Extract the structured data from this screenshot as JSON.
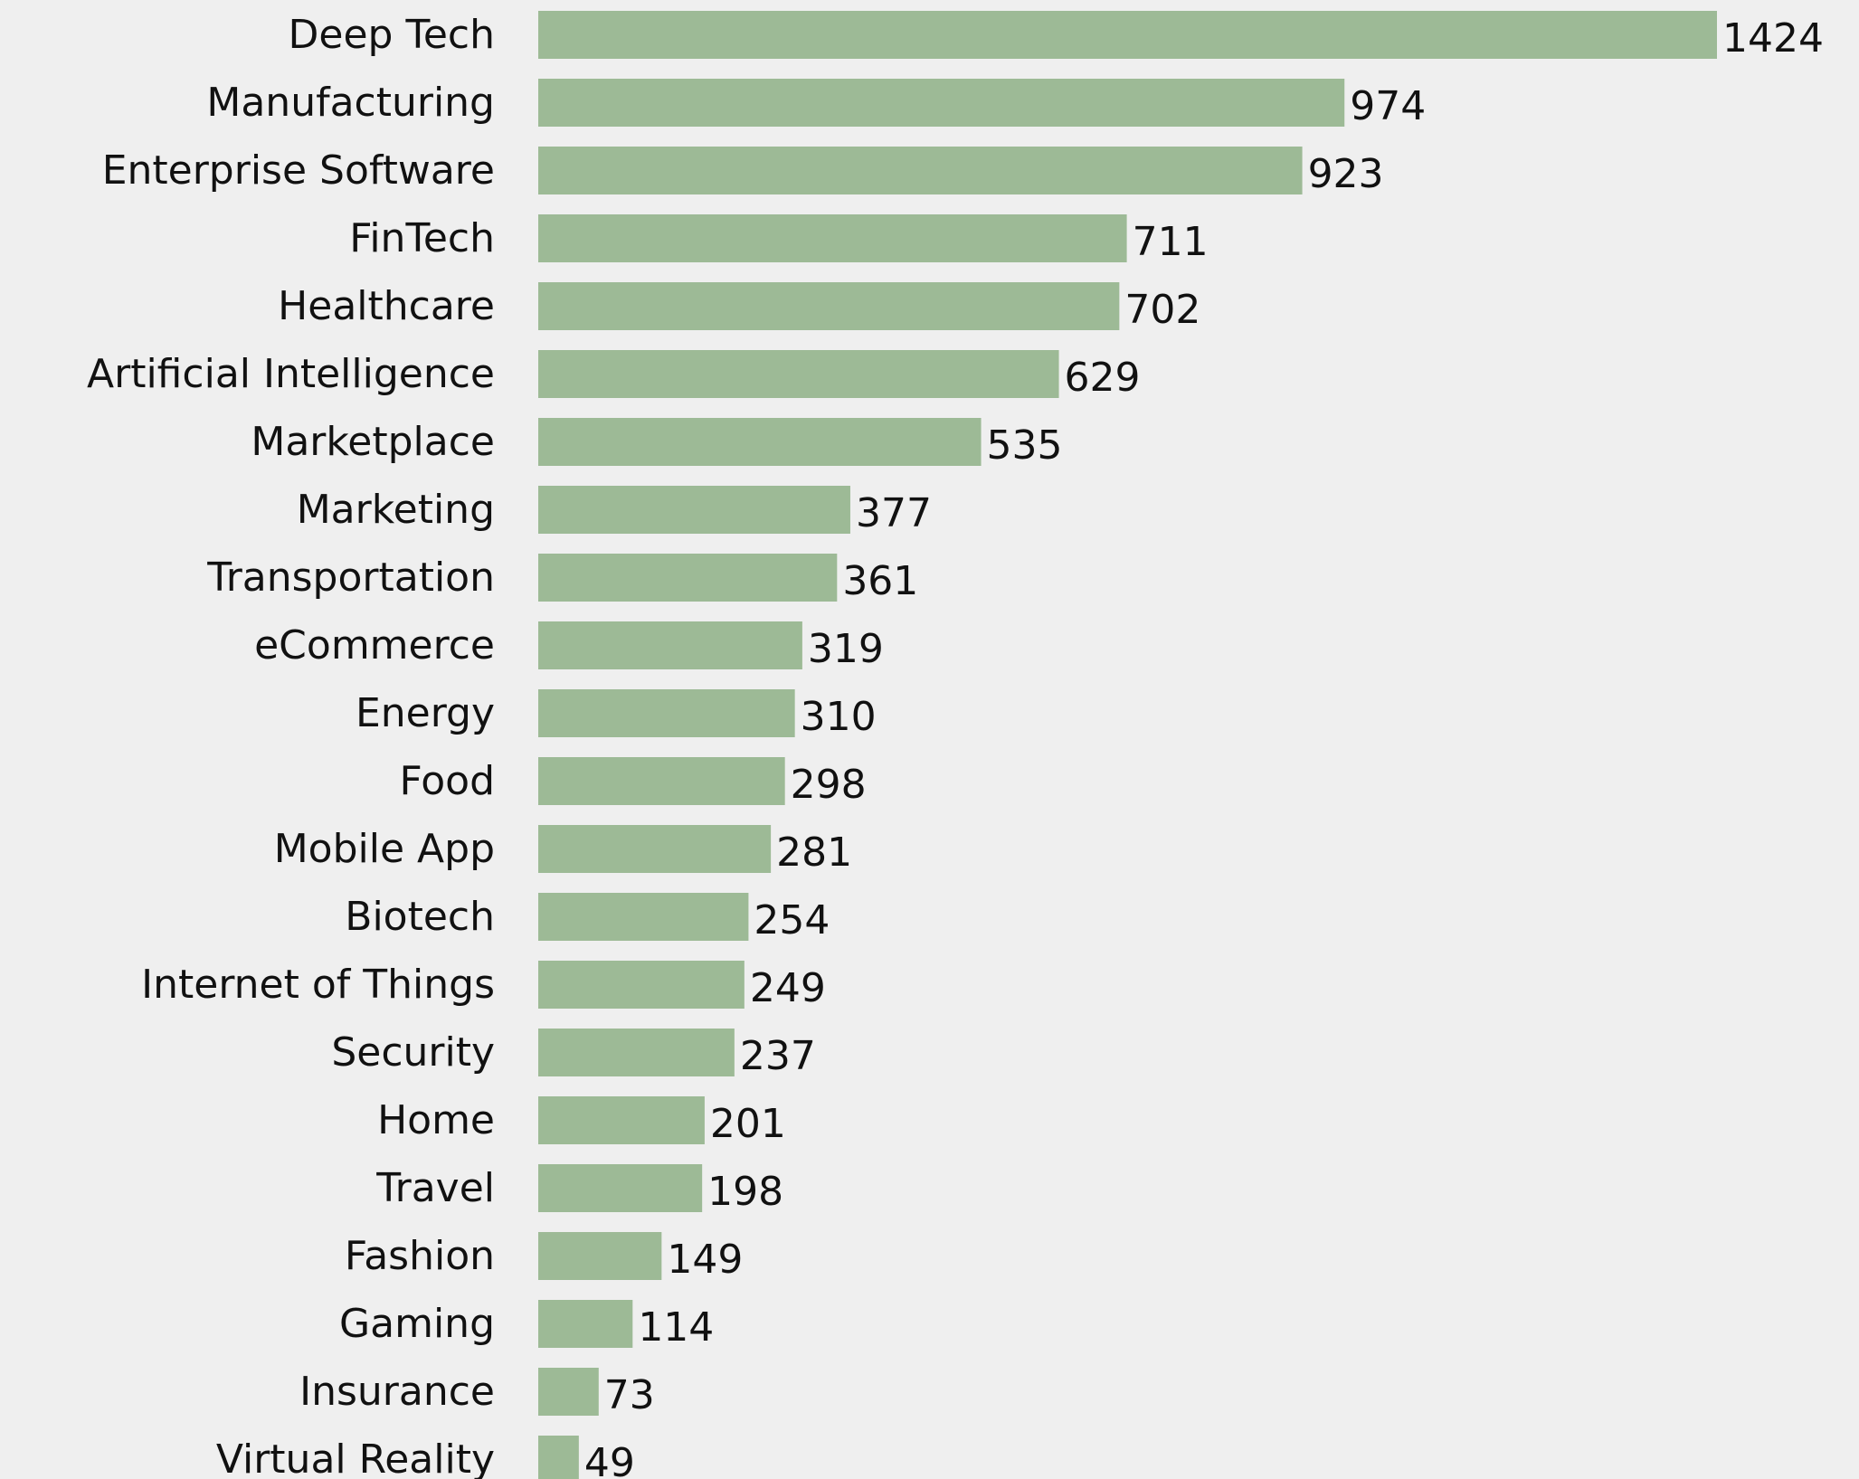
{
  "chart_data": {
    "type": "bar",
    "orientation": "horizontal",
    "title": "",
    "xlabel": "",
    "ylabel": "",
    "bar_color": "#9dba96",
    "background_color": "#efefef",
    "text_color": "#111111",
    "grid": false,
    "xlim": [
      0,
      1424
    ],
    "categories": [
      "Deep Tech",
      "Manufacturing",
      "Enterprise Software",
      "FinTech",
      "Healthcare",
      "Artificial Intelligence",
      "Marketplace",
      "Marketing",
      "Transportation",
      "eCommerce",
      "Energy",
      "Food",
      "Mobile App",
      "Biotech",
      "Internet of Things",
      "Security",
      "Home",
      "Travel",
      "Fashion",
      "Gaming",
      "Insurance",
      "Virtual Reality"
    ],
    "values": [
      1424,
      974,
      923,
      711,
      702,
      629,
      535,
      377,
      361,
      319,
      310,
      298,
      281,
      254,
      249,
      237,
      201,
      198,
      149,
      114,
      73,
      49
    ]
  }
}
